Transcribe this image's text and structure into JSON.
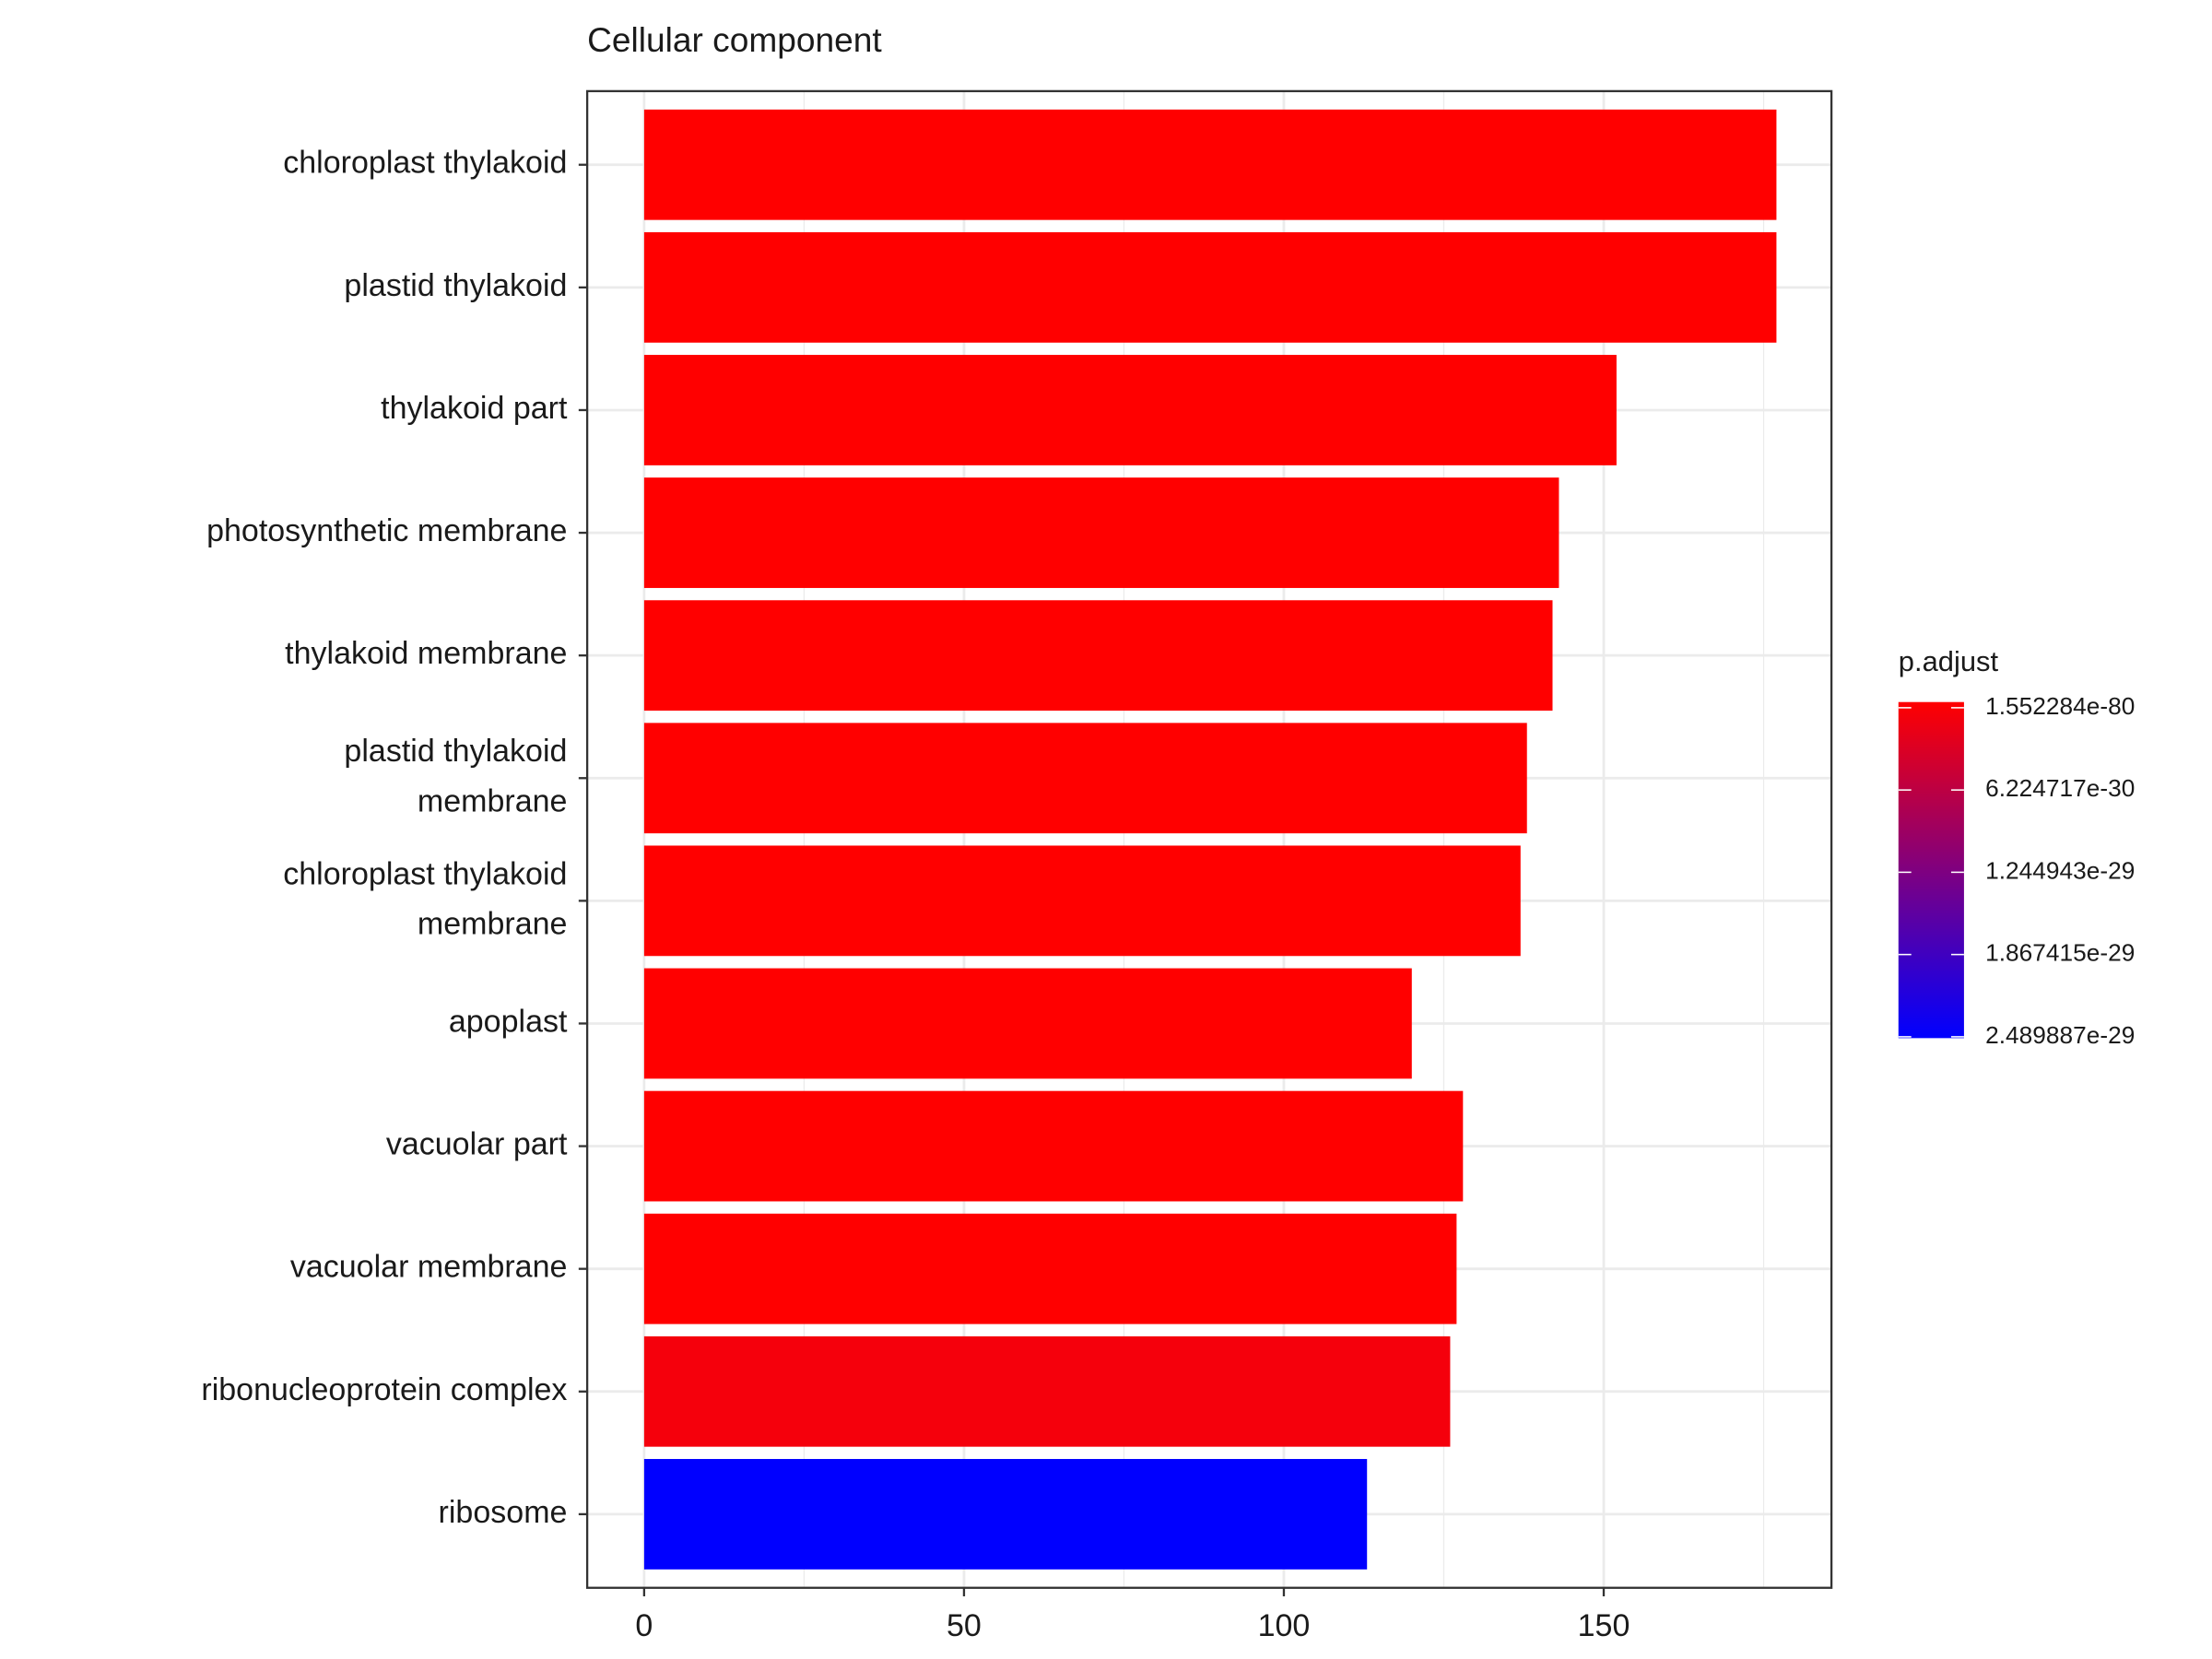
{
  "chart_data": {
    "type": "barh",
    "title": "Cellular component",
    "categories": [
      "chloroplast thylakoid",
      "plastid thylakoid",
      "thylakoid part",
      "photosynthetic membrane",
      "thylakoid membrane",
      "plastid thylakoid\nmembrane",
      "chloroplast thylakoid\nmembrane",
      "apoplast",
      "vacuolar part",
      "vacuolar membrane",
      "ribonucleoprotein complex",
      "ribosome"
    ],
    "values": [
      177,
      177,
      152,
      143,
      142,
      138,
      137,
      120,
      128,
      127,
      126,
      113
    ],
    "colors": [
      "#ff0000",
      "#ff0000",
      "#ff0000",
      "#ff0000",
      "#ff0000",
      "#ff0000",
      "#ff0000",
      "#ff0000",
      "#ff0000",
      "#ff0000",
      "#f5000c",
      "#0000ff"
    ],
    "xlim": [
      -8.9,
      185.6
    ],
    "xticks": [
      0,
      50,
      100,
      150
    ],
    "x_minor_grid": [
      25,
      75,
      125,
      175
    ],
    "grid": true,
    "legend": {
      "title": "p.adjust",
      "color_low": "#ff0000",
      "color_high": "#0000ff",
      "clim": [
        -4.3e-31,
        2.5e-29
      ],
      "ticks": [
        1.552284e-80,
        6.224717e-30,
        1.244943e-29,
        1.867415e-29,
        2.489887e-29
      ]
    }
  }
}
